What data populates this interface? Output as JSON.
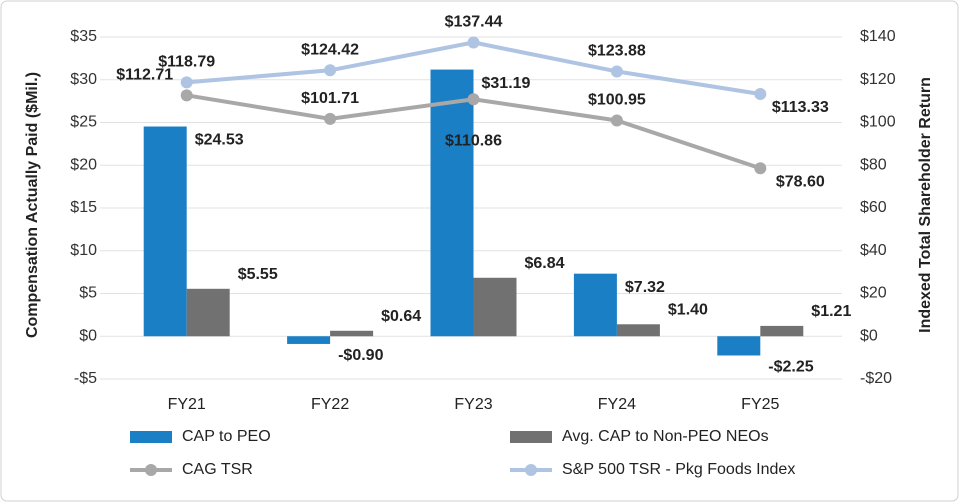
{
  "chart_data": {
    "type": "bar",
    "y_label": "Compensation Actually Paid ($Mil.)",
    "y2_label": "Indexed Total Shareholder Return",
    "categories": [
      "FY21",
      "FY22",
      "FY23",
      "FY24",
      "FY25"
    ],
    "ylim": [
      -5,
      35
    ],
    "yticks": [
      {
        "value": -5,
        "label": "-$5"
      },
      {
        "value": 0,
        "label": "$0"
      },
      {
        "value": 5,
        "label": "$5"
      },
      {
        "value": 10,
        "label": "$10"
      },
      {
        "value": 15,
        "label": "$15"
      },
      {
        "value": 20,
        "label": "$20"
      },
      {
        "value": 25,
        "label": "$25"
      },
      {
        "value": 30,
        "label": "$30"
      },
      {
        "value": 35,
        "label": "$35"
      }
    ],
    "y2lim": [
      -20,
      140
    ],
    "y2ticks": [
      {
        "value": -20,
        "label": "-$20"
      },
      {
        "value": 0,
        "label": "$0"
      },
      {
        "value": 20,
        "label": "$20"
      },
      {
        "value": 40,
        "label": "$40"
      },
      {
        "value": 60,
        "label": "$60"
      },
      {
        "value": 80,
        "label": "$80"
      },
      {
        "value": 100,
        "label": "$100"
      },
      {
        "value": 120,
        "label": "$120"
      },
      {
        "value": 140,
        "label": "$140"
      }
    ],
    "grid": true,
    "series": [
      {
        "name": "CAP to PEO",
        "type": "bar",
        "color": "#1b7fc5",
        "values": [
          24.53,
          -0.9,
          31.19,
          7.32,
          -2.25
        ],
        "value_labels": [
          "$24.53",
          "-$0.90",
          "$31.19",
          "$7.32",
          "-$2.25"
        ]
      },
      {
        "name": "Avg. CAP to Non-PEO NEOs",
        "type": "bar",
        "color": "#717171",
        "values": [
          5.55,
          0.64,
          6.84,
          1.4,
          1.21
        ],
        "value_labels": [
          "$5.55",
          "$0.64",
          "$6.84",
          "$1.40",
          "$1.21"
        ]
      },
      {
        "name": "CAG TSR",
        "type": "line",
        "axis": "y2",
        "color": "#a8a8a8",
        "values": [
          112.71,
          101.71,
          110.86,
          100.95,
          78.6
        ],
        "value_labels": [
          "$112.71",
          "$101.71",
          "$110.86",
          "$100.95",
          "$78.60"
        ]
      },
      {
        "name": "S&P 500 TSR - Pkg Foods Index",
        "type": "line",
        "axis": "y2",
        "color": "#aec4e2",
        "values": [
          118.79,
          124.42,
          137.44,
          123.88,
          113.33
        ],
        "value_labels": [
          "$118.79",
          "$124.42",
          "$137.44",
          "$123.88",
          "$113.33"
        ]
      }
    ]
  }
}
